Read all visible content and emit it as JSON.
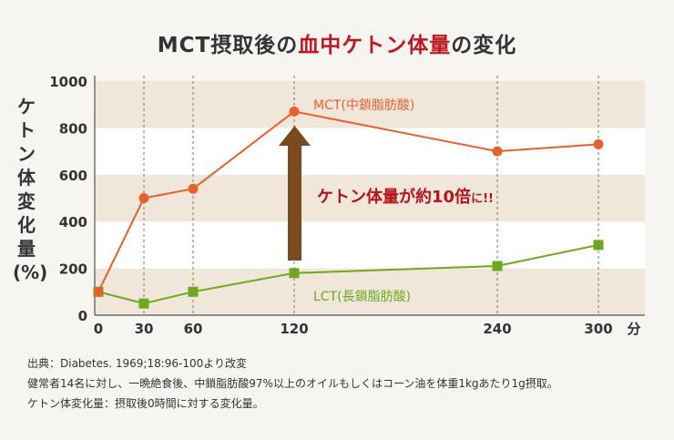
{
  "title_prefix": "MCT摂取後の",
  "title_highlight": "血中ケトン体量",
  "title_suffix": "の変化",
  "chart_data": {
    "type": "line",
    "ylabel": "ケトン体変化量(%)",
    "xunit": "分",
    "x": [
      0,
      30,
      60,
      120,
      240,
      300
    ],
    "xticks": [
      "0",
      "30",
      "60",
      "120",
      "240",
      "300"
    ],
    "yticks": [
      "0",
      "200",
      "400",
      "600",
      "800",
      "1000"
    ],
    "ylim": [
      0,
      1000
    ],
    "series": [
      {
        "name": "MCT(中鎖脂肪酸)",
        "color": "#e8602c",
        "marker": "circle",
        "values": [
          100,
          500,
          540,
          870,
          700,
          730
        ]
      },
      {
        "name": "LCT(長鎖脂肪酸)",
        "color": "#6fa81e",
        "marker": "square",
        "values": [
          100,
          50,
          100,
          180,
          210,
          300
        ]
      }
    ],
    "annotation": {
      "main": "ケトン体量が約10倍",
      "suffix": "に!!",
      "color": "#b5141b",
      "arrow_color": "#7b4a1e"
    },
    "band_color": "#f1e6da"
  },
  "notes": [
    "出典：Diabetes. 1969;18:96-100より改変",
    "健常者14名に対し、一晩絶食後、中鎖脂肪酸97%以上のオイルもしくはコーン油を体重1kgあたり1g摂取。",
    "ケトン体変化量：摂取後0時間に対する変化量。"
  ]
}
